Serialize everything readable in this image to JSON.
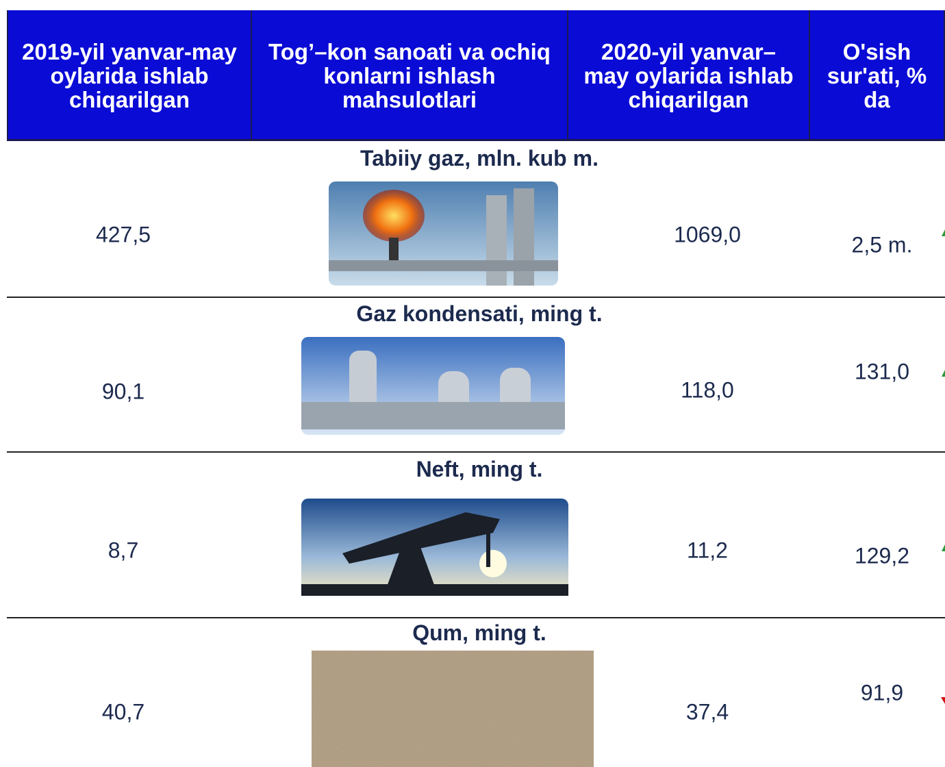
{
  "header": {
    "columns": [
      "2019-yil yanvar-may oylarida ishlab chiqarilgan",
      "Tog’–kon sanoati va ochiq konlarni ishlash mahsulotlari",
      "2020-yil yanvar–may oylarida ishlab chiqarilgan",
      "O'sish sur'ati, % da"
    ]
  },
  "rows": [
    {
      "title": "Tabiiy gaz, mln. kub m.",
      "value_2019": "427,5",
      "value_2020": "1069,0",
      "growth": "2,5 m."
    },
    {
      "title": "Gaz kondensati, ming t.",
      "value_2019": "90,1",
      "value_2020": "118,0",
      "growth": "131,0"
    },
    {
      "title": "Neft, ming t.",
      "value_2019": "8,7",
      "value_2020": "11,2",
      "growth": "129,2"
    },
    {
      "title": "Qum, ming t.",
      "value_2019": "40,7",
      "value_2020": "37,4",
      "growth": "91,9"
    }
  ]
}
